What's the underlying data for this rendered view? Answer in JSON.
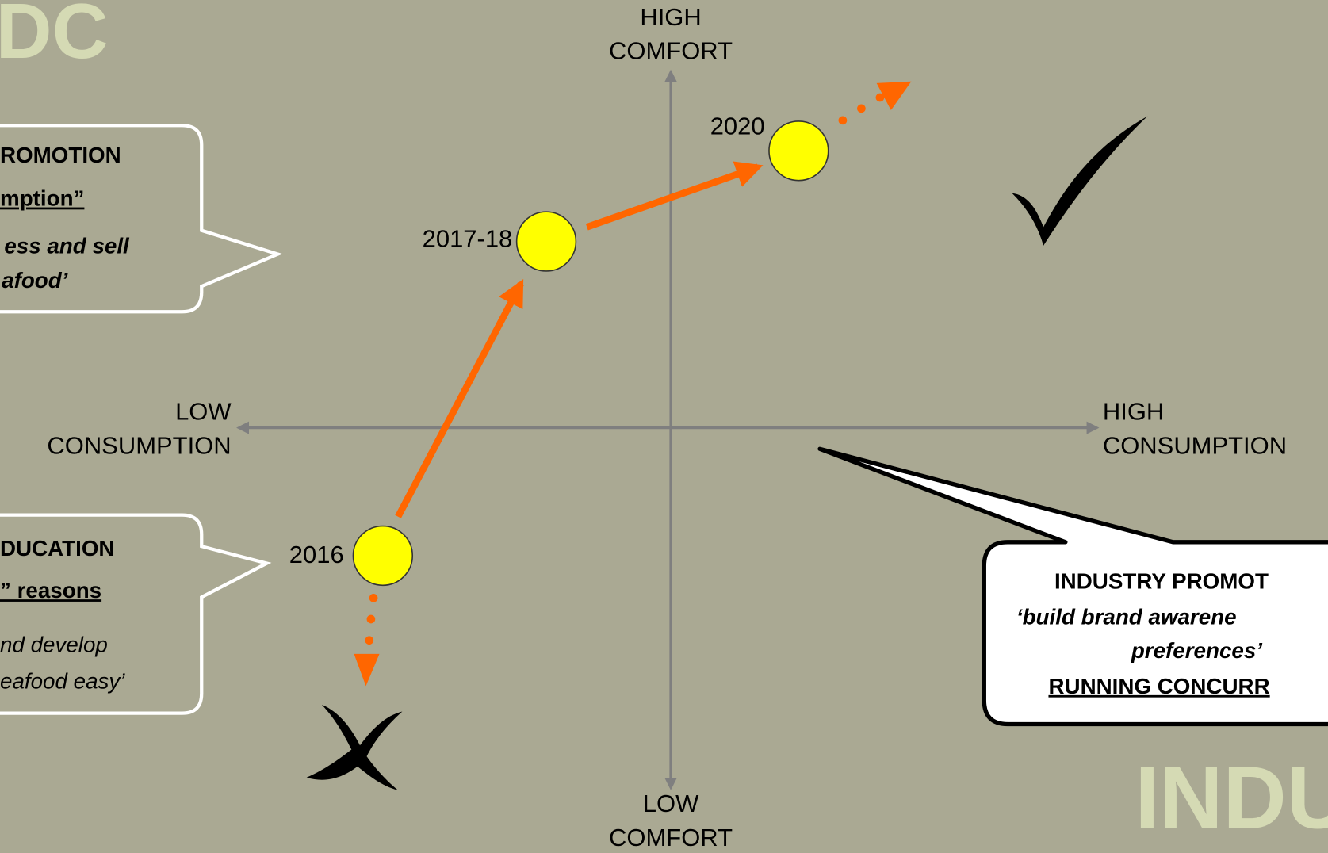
{
  "watermarks": {
    "top_left": "DC",
    "bottom_right": "INDUST"
  },
  "axes": {
    "top": [
      "HIGH",
      "COMFORT"
    ],
    "bottom": [
      "LOW",
      "COMFORT"
    ],
    "left": [
      "LOW",
      "CONSUMPTION"
    ],
    "right": [
      "HIGH",
      "CONSUMPTION"
    ]
  },
  "points": [
    {
      "label": "2016"
    },
    {
      "label": "2017-18"
    },
    {
      "label": "2020"
    }
  ],
  "callouts": [
    {
      "lines": [
        "ROMOTION",
        "mption”",
        "ess and sell",
        "afood’"
      ]
    },
    {
      "lines": [
        "DUCATION",
        "” reasons",
        "nd develop",
        "eafood easy’"
      ]
    },
    {
      "lines": [
        "INDUSTRY PROMOT",
        "‘build brand awarene",
        "preferences’",
        "RUNNING CONCURR"
      ]
    }
  ]
}
